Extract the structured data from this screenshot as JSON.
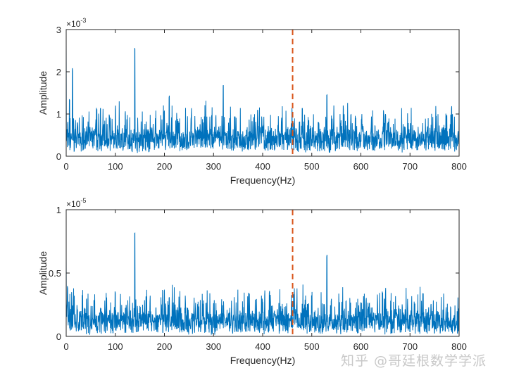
{
  "colors": {
    "series": "#0072bd",
    "marker": "#d95319",
    "axis": "#262626"
  },
  "chart_data": [
    {
      "type": "line",
      "title": "",
      "xlabel": "Frequency(Hz)",
      "ylabel": "Amplitude",
      "exponent_label": "×10",
      "exponent": "-3",
      "xlim": [
        0,
        800
      ],
      "ylim": [
        0,
        3
      ],
      "xticks": [
        "0",
        "100",
        "200",
        "300",
        "400",
        "500",
        "600",
        "700",
        "800"
      ],
      "yticks": [
        "0",
        "1",
        "2",
        "3"
      ],
      "ytick_values": [
        0,
        1,
        2,
        3
      ],
      "grid": false,
      "marker_line_x": 461,
      "noise": {
        "baseline": 0.35,
        "spread": 0.3,
        "seed": 7
      },
      "peaks": [
        [
          0,
          2.8
        ],
        [
          7,
          1.4
        ],
        [
          13,
          2.1
        ],
        [
          70,
          1.2
        ],
        [
          88,
          1.0
        ],
        [
          140,
          2.6
        ],
        [
          200,
          1.1
        ],
        [
          210,
          1.45
        ],
        [
          320,
          1.7
        ],
        [
          390,
          1.1
        ],
        [
          460,
          1.15
        ],
        [
          531,
          1.5
        ],
        [
          580,
          1.0
        ],
        [
          650,
          1.0
        ],
        [
          775,
          1.0
        ],
        [
          785,
          1.2
        ]
      ]
    },
    {
      "type": "line",
      "title": "",
      "xlabel": "Frequency(Hz)",
      "ylabel": "Amplitude",
      "exponent_label": "×10",
      "exponent": "-5",
      "xlim": [
        0,
        800
      ],
      "ylim": [
        0,
        1
      ],
      "xticks": [
        "0",
        "100",
        "200",
        "300",
        "400",
        "500",
        "600",
        "700",
        "800"
      ],
      "yticks": [
        "0",
        "0.5",
        "1"
      ],
      "ytick_values": [
        0,
        0.5,
        1
      ],
      "grid": false,
      "marker_line_x": 461,
      "noise": {
        "baseline": 0.1,
        "spread": 0.1,
        "seed": 13
      },
      "peaks": [
        [
          0,
          0.63
        ],
        [
          3,
          0.4
        ],
        [
          42,
          0.3
        ],
        [
          100,
          0.36
        ],
        [
          140,
          0.83
        ],
        [
          200,
          0.37
        ],
        [
          210,
          0.31
        ],
        [
          285,
          0.27
        ],
        [
          400,
          0.27
        ],
        [
          414,
          0.36
        ],
        [
          460,
          0.26
        ],
        [
          531,
          0.66
        ],
        [
          570,
          0.29
        ],
        [
          648,
          0.3
        ],
        [
          710,
          0.26
        ],
        [
          743,
          0.26
        ],
        [
          783,
          0.24
        ]
      ]
    }
  ],
  "watermark": "知乎 @哥廷根数学学派"
}
